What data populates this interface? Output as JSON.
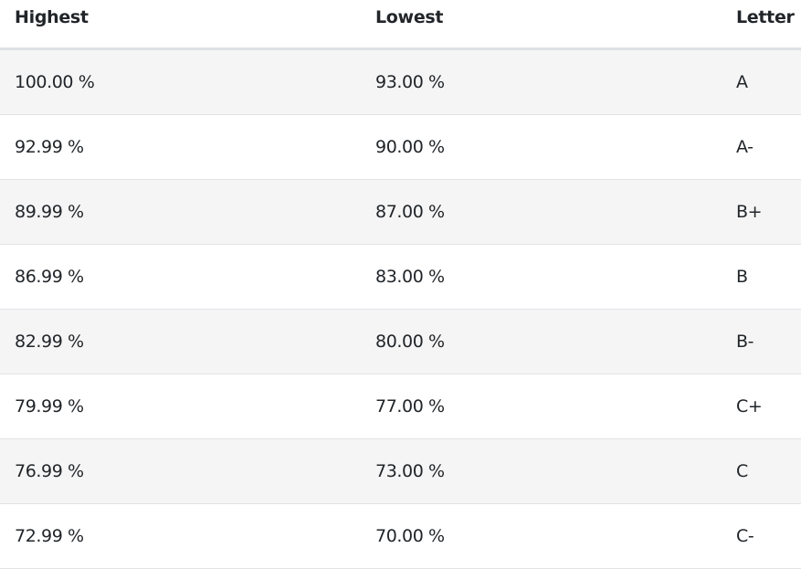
{
  "table": {
    "headers": [
      "Highest",
      "Lowest",
      "Letter"
    ],
    "rows": [
      [
        "100.00 %",
        "93.00 %",
        "A"
      ],
      [
        "92.99 %",
        "90.00 %",
        "A-"
      ],
      [
        "89.99 %",
        "87.00 %",
        "B+"
      ],
      [
        "86.99 %",
        "83.00 %",
        "B"
      ],
      [
        "82.99 %",
        "80.00 %",
        "B-"
      ],
      [
        "79.99 %",
        "77.00 %",
        "C+"
      ],
      [
        "76.99 %",
        "73.00 %",
        "C"
      ],
      [
        "72.99 %",
        "70.00 %",
        "C-"
      ]
    ]
  }
}
